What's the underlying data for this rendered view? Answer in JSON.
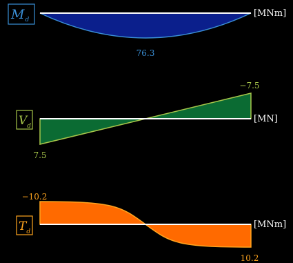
{
  "colors": {
    "moment": "#3a8fd6",
    "moment_fill": "#0b1f8c",
    "shear": "#a7c64a",
    "shear_fill": "#0b6b33",
    "torsion": "#ffa51f",
    "torsion_fill": "#ff6a00"
  },
  "moment": {
    "symbol": "M",
    "subscript": "d",
    "unit": "[MNm]",
    "max_label": "76.3",
    "max_value": 76.3
  },
  "shear": {
    "symbol": "V",
    "subscript": "d",
    "unit": "[MN]",
    "left_label": "7.5",
    "right_label": "−7.5",
    "left_value": 7.5,
    "right_value": -7.5
  },
  "torsion": {
    "symbol": "T",
    "subscript": "d",
    "unit": "[MNm]",
    "left_label": "−10.2",
    "right_label": "10.2",
    "left_value": -10.2,
    "right_value": 10.2
  }
}
